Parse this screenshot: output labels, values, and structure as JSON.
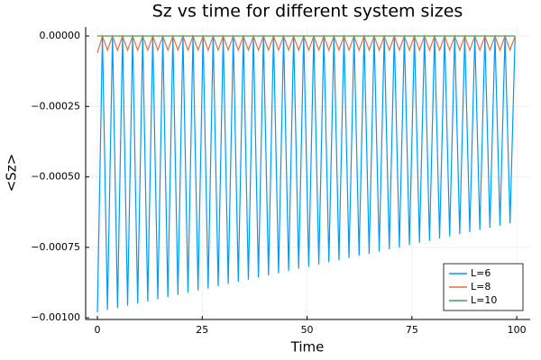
{
  "chart_data": {
    "type": "line",
    "title": "Sz vs time for different system sizes",
    "x_label": "Time",
    "y_label": "<Sz>",
    "x": [
      0,
      1.2,
      2.4,
      3.6,
      4.8,
      6,
      7.2,
      8.4,
      9.6,
      10.8,
      12,
      13.2,
      14.4,
      15.6,
      16.8,
      18,
      19.2,
      20.4,
      21.6,
      22.8,
      24,
      25.2,
      26.4,
      27.6,
      28.8,
      30,
      31.2,
      32.4,
      33.6,
      34.8,
      36,
      37.2,
      38.4,
      39.6,
      40.8,
      42,
      43.2,
      44.4,
      45.6,
      46.8,
      48,
      49.2,
      50.4,
      51.6,
      52.8,
      54,
      55.2,
      56.4,
      57.6,
      58.8,
      60,
      61.2,
      62.4,
      63.6,
      64.8,
      66,
      67.2,
      68.4,
      69.6,
      70.8,
      72,
      73.2,
      74.4,
      75.6,
      76.8,
      78,
      79.2,
      80.4,
      81.6,
      82.8,
      84,
      85.2,
      86.4,
      87.6,
      88.8,
      90,
      91.2,
      92.4,
      93.6,
      94.8,
      96,
      97.2,
      98.4,
      99.6
    ],
    "series": [
      {
        "name": "L=6",
        "color": "#009af9",
        "values": [
          -0.00098,
          0,
          -0.000972,
          0,
          -0.000965,
          0,
          -0.000957,
          0,
          -0.000949,
          0,
          -0.000942,
          0,
          -0.000934,
          0,
          -0.000926,
          0,
          -0.000919,
          0,
          -0.000911,
          0,
          -0.000903,
          0,
          -0.000896,
          0,
          -0.000888,
          0,
          -0.00088,
          0,
          -0.000872,
          0,
          -0.000865,
          0,
          -0.000857,
          0,
          -0.000849,
          0,
          -0.000842,
          0,
          -0.000834,
          0,
          -0.000826,
          0,
          -0.000819,
          0,
          -0.000811,
          0,
          -0.000803,
          0,
          -0.000796,
          0,
          -0.000788,
          0,
          -0.00078,
          0,
          -0.000773,
          0,
          -0.000765,
          0,
          -0.000757,
          0,
          -0.00075,
          0,
          -0.000742,
          0,
          -0.000734,
          0,
          -0.000727,
          0,
          -0.000719,
          0,
          -0.000711,
          0,
          -0.000703,
          0,
          -0.000696,
          0,
          -0.000688,
          0,
          -0.00068,
          0,
          -0.000673,
          0,
          -0.000665,
          0
        ]
      },
      {
        "name": "L=8",
        "color": "#e26f46",
        "values": [
          -6e-05,
          0,
          -5e-05,
          0,
          -5e-05,
          0,
          -5e-05,
          0,
          -5e-05,
          0,
          -5e-05,
          0,
          -5e-05,
          0,
          -5e-05,
          0,
          -5e-05,
          0,
          -5e-05,
          0,
          -5e-05,
          0,
          -5e-05,
          0,
          -5e-05,
          0,
          -5e-05,
          0,
          -5e-05,
          0,
          -5e-05,
          0,
          -5e-05,
          0,
          -5e-05,
          0,
          -5e-05,
          0,
          -5e-05,
          0,
          -5e-05,
          0,
          -5e-05,
          0,
          -5e-05,
          0,
          -5e-05,
          0,
          -5e-05,
          0,
          -5e-05,
          0,
          -5e-05,
          0,
          -5e-05,
          0,
          -5e-05,
          0,
          -5e-05,
          0,
          -5e-05,
          0,
          -5e-05,
          0,
          -5e-05,
          0,
          -5e-05,
          0,
          -5e-05,
          0,
          -5e-05,
          0,
          -5e-05,
          0,
          -5e-05,
          0,
          -5e-05,
          0,
          -5e-05,
          0,
          -5e-05,
          0,
          -5e-05,
          0
        ]
      },
      {
        "name": "L=10",
        "color": "#3da44d",
        "values": [
          0,
          0,
          0,
          0,
          0,
          0,
          0,
          0,
          0,
          0,
          0,
          0,
          0,
          0,
          0,
          0,
          0,
          0,
          0,
          0,
          0,
          0,
          0,
          0,
          0,
          0,
          0,
          0,
          0,
          0,
          0,
          0,
          0,
          0,
          0,
          0,
          0,
          0,
          0,
          0,
          0,
          0,
          0,
          0,
          0,
          0,
          0,
          0,
          0,
          0,
          0,
          0,
          0,
          0,
          0,
          0,
          0,
          0,
          0,
          0,
          0,
          0,
          0,
          0,
          0,
          0,
          0,
          0,
          0,
          0,
          0,
          0,
          0,
          0,
          0,
          0,
          0,
          0,
          0,
          0,
          0,
          0,
          0,
          0
        ]
      }
    ],
    "xlim": [
      -2.8,
      103.2
    ],
    "xticks": [
      0,
      25,
      50,
      75,
      100
    ],
    "ylim": [
      -0.001006,
      3.2e-05
    ],
    "yticks": [
      {
        "value": 0,
        "label": "0.00000"
      },
      {
        "value": -0.00025,
        "label": "−0.00025"
      },
      {
        "value": -0.0005,
        "label": "−0.00050"
      },
      {
        "value": -0.00075,
        "label": "−0.00075"
      },
      {
        "value": -0.001,
        "label": "−0.00100"
      }
    ],
    "grid": true,
    "legend": "bottom-right"
  }
}
